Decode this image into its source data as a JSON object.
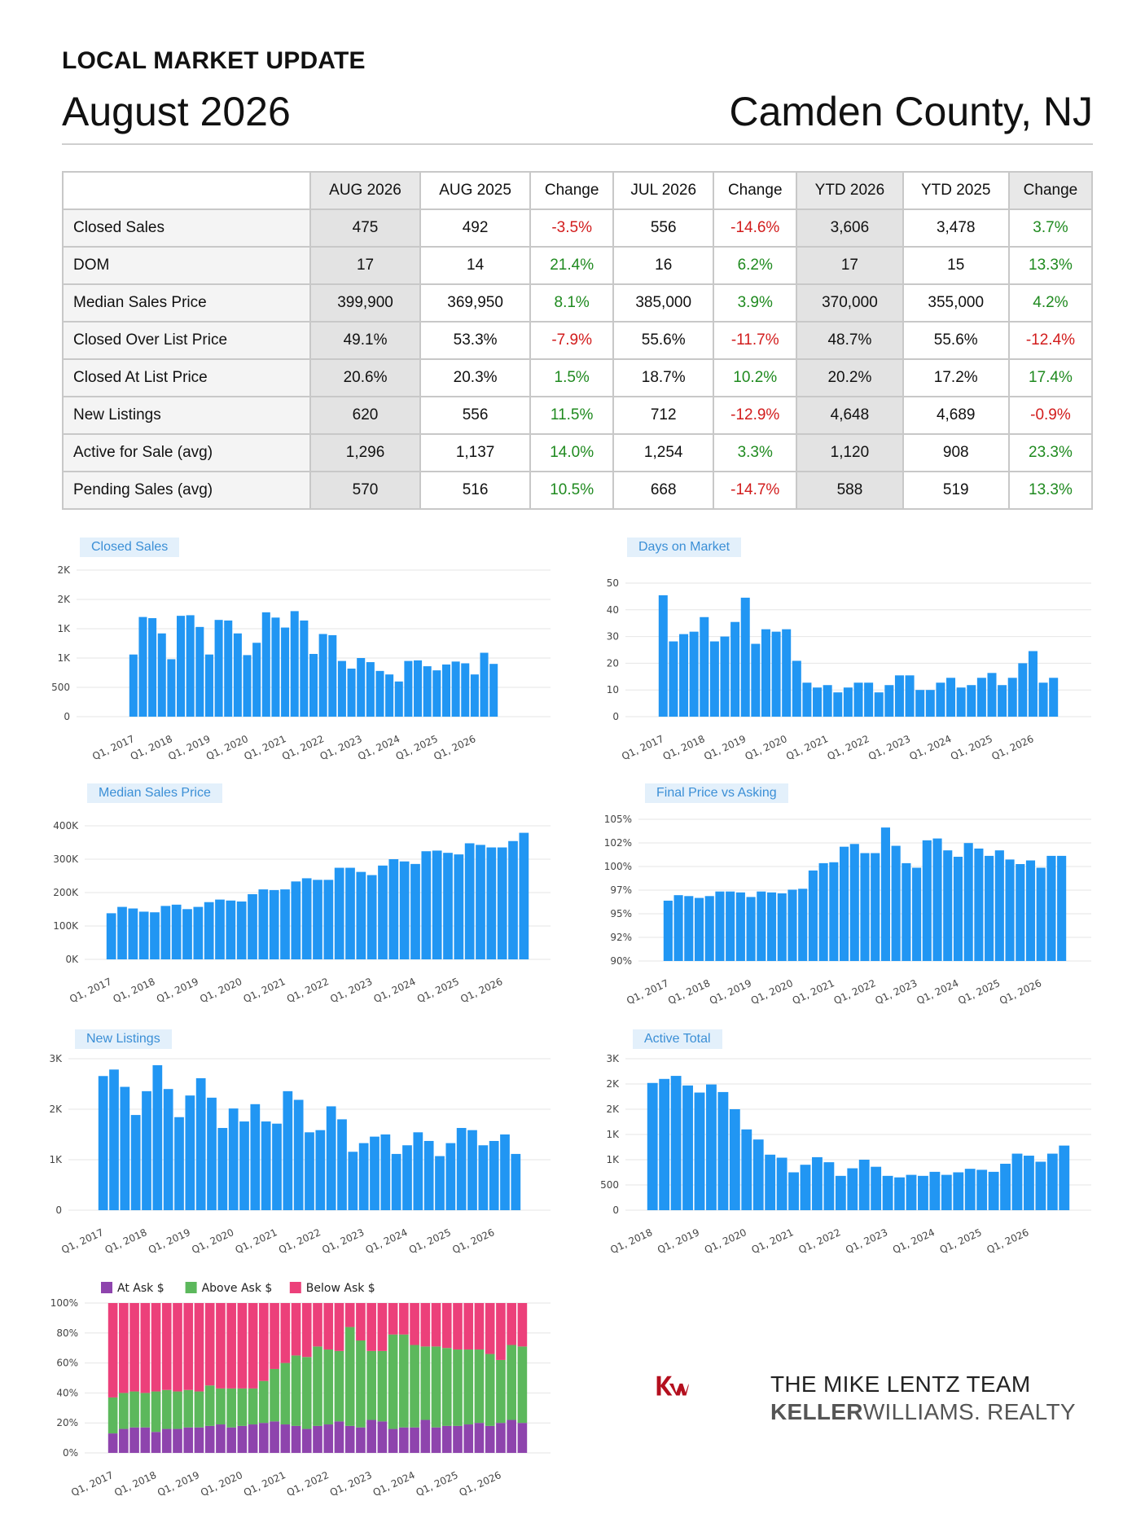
{
  "header": {
    "kicker": "LOCAL MARKET UPDATE",
    "month": "August 2026",
    "county": "Camden County, NJ"
  },
  "table": {
    "columns": [
      "",
      "AUG 2026",
      "AUG 2025",
      "Change",
      "JUL 2026",
      "Change",
      "YTD 2026",
      "YTD 2025",
      "Change"
    ],
    "rows": [
      {
        "label": "Closed Sales",
        "cells": [
          "475",
          "492",
          "-3.5%",
          "556",
          "-14.6%",
          "3,606",
          "3,478",
          "3.7%"
        ]
      },
      {
        "label": "DOM",
        "cells": [
          "17",
          "14",
          "21.4%",
          "16",
          "6.2%",
          "17",
          "15",
          "13.3%"
        ]
      },
      {
        "label": "Median Sales Price",
        "cells": [
          "399,900",
          "369,950",
          "8.1%",
          "385,000",
          "3.9%",
          "370,000",
          "355,000",
          "4.2%"
        ]
      },
      {
        "label": "Closed Over List Price",
        "cells": [
          "49.1%",
          "53.3%",
          "-7.9%",
          "55.6%",
          "-11.7%",
          "48.7%",
          "55.6%",
          "-12.4%"
        ]
      },
      {
        "label": "Closed At List Price",
        "cells": [
          "20.6%",
          "20.3%",
          "1.5%",
          "18.7%",
          "10.2%",
          "20.2%",
          "17.2%",
          "17.4%"
        ]
      },
      {
        "label": "New Listings",
        "cells": [
          "620",
          "556",
          "11.5%",
          "712",
          "-12.9%",
          "4,648",
          "4,689",
          "-0.9%"
        ]
      },
      {
        "label": "Active for Sale (avg)",
        "cells": [
          "1,296",
          "1,137",
          "14.0%",
          "1,254",
          "3.3%",
          "1,120",
          "908",
          "23.3%"
        ]
      },
      {
        "label": "Pending Sales (avg)",
        "cells": [
          "570",
          "516",
          "10.5%",
          "668",
          "-14.7%",
          "588",
          "519",
          "13.3%"
        ]
      }
    ]
  },
  "chart_data": [
    {
      "id": "closed",
      "type": "bar",
      "title": "Closed Sales",
      "yticks": [
        "0",
        "500",
        "1K",
        "1K",
        "2K",
        "2K"
      ],
      "ymax": 2500,
      "xlabels": [
        "Q1, 2017",
        "Q1, 2018",
        "Q1, 2019",
        "Q1, 2020",
        "Q1, 2021",
        "Q1, 2022",
        "Q1, 2023",
        "Q1, 2024",
        "Q1, 2025",
        "Q1, 2026"
      ],
      "values": [
        1060,
        1700,
        1680,
        1420,
        980,
        1720,
        1730,
        1530,
        1060,
        1650,
        1640,
        1420,
        1050,
        1260,
        1780,
        1690,
        1520,
        1800,
        1640,
        1070,
        1410,
        1390,
        950,
        820,
        1000,
        930,
        780,
        720,
        600,
        950,
        960,
        860,
        790,
        890,
        940,
        910,
        720,
        1090,
        900
      ]
    },
    {
      "id": "dom",
      "type": "bar",
      "title": "Days on Market",
      "yticks": [
        "0",
        "10",
        "20",
        "30",
        "40",
        "50"
      ],
      "ymax": 55,
      "xlabels": [
        "Q1, 2017",
        "Q1, 2018",
        "Q1, 2019",
        "Q1, 2020",
        "Q1, 2021",
        "Q1, 2022",
        "Q1, 2023",
        "Q1, 2024",
        "Q1, 2025",
        "Q1, 2026"
      ],
      "values": [
        50,
        31,
        34,
        35,
        41,
        31,
        33,
        39,
        49,
        30,
        36,
        35,
        36,
        23,
        14,
        12,
        13,
        10,
        12,
        14,
        14,
        10,
        13,
        17,
        17,
        11,
        11,
        14,
        16,
        12,
        13,
        16,
        18,
        13,
        16,
        22,
        27,
        14,
        16
      ]
    },
    {
      "id": "price",
      "type": "bar",
      "title": "Median Sales Price",
      "yticks": [
        "0K",
        "100K",
        "200K",
        "300K",
        "400K"
      ],
      "ymax": 420000,
      "xlabels": [
        "Q1, 2017",
        "Q1, 2018",
        "Q1, 2019",
        "Q1, 2020",
        "Q1, 2021",
        "Q1, 2022",
        "Q1, 2023",
        "Q1, 2024",
        "Q1, 2025",
        "Q1, 2026"
      ],
      "values": [
        145000,
        165000,
        160000,
        150000,
        148000,
        168000,
        172000,
        158000,
        165000,
        180000,
        188000,
        185000,
        182000,
        205000,
        220000,
        218000,
        220000,
        245000,
        255000,
        250000,
        250000,
        288000,
        288000,
        275000,
        265000,
        295000,
        315000,
        308000,
        300000,
        340000,
        342000,
        335000,
        330000,
        365000,
        360000,
        352000,
        352000,
        372000,
        398000
      ]
    },
    {
      "id": "final",
      "type": "bar",
      "title": "Final Price vs Asking",
      "yticks": [
        "90%",
        "92%",
        "95%",
        "97%",
        "100%",
        "102%",
        "105%"
      ],
      "ymin": 90,
      "ymax": 105.5,
      "xlabels": [
        "Q1, 2017",
        "Q1, 2018",
        "Q1, 2019",
        "Q1, 2020",
        "Q1, 2021",
        "Q1, 2022",
        "Q1, 2023",
        "Q1, 2024",
        "Q1, 2025",
        "Q1, 2026"
      ],
      "values": [
        96.6,
        97.2,
        97.1,
        96.9,
        97.1,
        97.6,
        97.6,
        97.5,
        97.0,
        97.6,
        97.5,
        97.4,
        97.8,
        97.9,
        99.9,
        100.7,
        100.8,
        102.5,
        102.8,
        101.8,
        101.8,
        104.6,
        102.6,
        100.7,
        100.2,
        103.2,
        103.4,
        102.1,
        101.4,
        102.9,
        102.3,
        101.5,
        102.1,
        101.1,
        100.6,
        101.0,
        100.2,
        101.5,
        101.5
      ]
    },
    {
      "id": "new",
      "type": "bar",
      "title": "New Listings",
      "yticks": [
        "0",
        "1K",
        "2K",
        "3K"
      ],
      "ymax": 3500,
      "xlabels": [
        "Q1, 2017",
        "Q1, 2018",
        "Q1, 2019",
        "Q1, 2020",
        "Q1, 2021",
        "Q1, 2022",
        "Q1, 2023",
        "Q1, 2024",
        "Q1, 2025",
        "Q1, 2026"
      ],
      "values": [
        3100,
        3250,
        2850,
        2200,
        2750,
        3350,
        2800,
        2150,
        2650,
        3050,
        2600,
        1900,
        2350,
        2050,
        2450,
        2050,
        2000,
        2750,
        2550,
        1800,
        1850,
        2400,
        2100,
        1350,
        1550,
        1700,
        1750,
        1300,
        1500,
        1800,
        1600,
        1250,
        1550,
        1900,
        1850,
        1500,
        1600,
        1750,
        1300
      ]
    },
    {
      "id": "active",
      "type": "bar",
      "title": "Active Total",
      "yticks": [
        "0",
        "500",
        "1K",
        "1K",
        "2K",
        "2K",
        "3K"
      ],
      "ymax": 3000,
      "xlabels": [
        "Q1, 2018",
        "Q1, 2019",
        "Q1, 2020",
        "Q1, 2021",
        "Q1, 2022",
        "Q1, 2023",
        "Q1, 2024",
        "Q1, 2025",
        "Q1, 2026"
      ],
      "values": [
        2520,
        2600,
        2660,
        2470,
        2330,
        2490,
        2340,
        2000,
        1600,
        1400,
        1100,
        1040,
        750,
        900,
        1050,
        950,
        680,
        830,
        1000,
        860,
        680,
        650,
        700,
        680,
        760,
        700,
        750,
        820,
        800,
        760,
        920,
        1120,
        1080,
        960,
        1120,
        1280
      ]
    },
    {
      "id": "share",
      "type": "stacked-bar",
      "yticks": [
        "0%",
        "20%",
        "40%",
        "60%",
        "80%",
        "100%"
      ],
      "legend": [
        {
          "name": "At Ask $",
          "color": "#8e44ad"
        },
        {
          "name": "Above Ask $",
          "color": "#5cb85c"
        },
        {
          "name": "Below Ask $",
          "color": "#ec407a"
        }
      ],
      "xlabels": [
        "Q1, 2017",
        "Q1, 2018",
        "Q1, 2019",
        "Q1, 2020",
        "Q1, 2021",
        "Q1, 2022",
        "Q1, 2023",
        "Q1, 2024",
        "Q1, 2025",
        "Q1, 2026"
      ],
      "at": [
        13,
        16,
        17,
        17,
        14,
        16,
        16,
        17,
        17,
        18,
        19,
        17,
        18,
        19,
        20,
        21,
        19,
        18,
        16,
        18,
        19,
        21,
        18,
        17,
        22,
        21,
        16,
        17,
        17,
        22,
        17,
        18,
        18,
        19,
        20,
        18,
        20,
        22,
        20
      ],
      "above": [
        24,
        24,
        24,
        23,
        27,
        26,
        25,
        25,
        24,
        27,
        24,
        26,
        25,
        24,
        28,
        35,
        41,
        47,
        48,
        53,
        50,
        47,
        66,
        58,
        46,
        47,
        63,
        62,
        55,
        49,
        54,
        52,
        51,
        50,
        49,
        48,
        42,
        50,
        51
      ]
    }
  ],
  "logo": {
    "team": "THE MIKE LENTZ TEAM",
    "brand_bold": "KELLER",
    "brand_rest": "WILLIAMS. REALTY"
  }
}
